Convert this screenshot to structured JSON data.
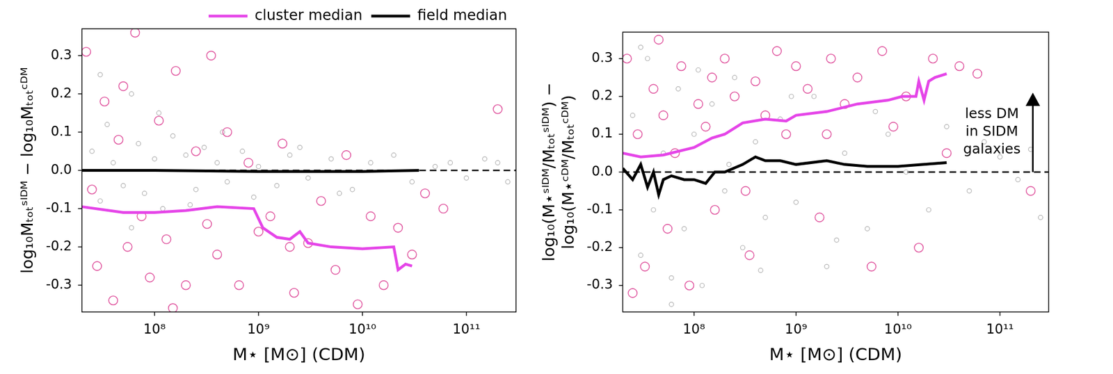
{
  "chart_data": [
    {
      "type": "scatter",
      "x_label": "M⋆ [M⊙] (CDM)",
      "y_label": "log₁₀Mₜₒₜˢᴵᴰᴹ − log₁₀Mₜₒₜᶜᴰᴹ",
      "log": "x",
      "grid": false,
      "legend": "top right",
      "xlim": [
        20000000.0,
        300000000000.0
      ],
      "xticks": [
        {
          "value": 100000000.0,
          "label": "10⁸"
        },
        {
          "value": 1000000000.0,
          "label": "10⁹"
        },
        {
          "value": 10000000000.0,
          "label": "10¹⁰"
        },
        {
          "value": 100000000000.0,
          "label": "10¹¹"
        }
      ],
      "ylim": [
        -0.37,
        0.37
      ],
      "yticks": [
        -0.3,
        -0.2,
        -0.1,
        {
          "value": 0,
          "label": "0.0"
        },
        0.1,
        0.2,
        0.3
      ],
      "reference_line": {
        "y": 0,
        "color": "#000000",
        "line_style": "dashed"
      },
      "series": [
        {
          "type": "scatter",
          "color": "#b0b0b0",
          "marker": "small_open_circle",
          "x": [
            25000000.0,
            30000000.0,
            35000000.0,
            40000000.0,
            50000000.0,
            60000000.0,
            70000000.0,
            80000000.0,
            100000000.0,
            120000000.0,
            150000000.0,
            200000000.0,
            250000000.0,
            300000000.0,
            400000000.0,
            500000000.0,
            700000000.0,
            1000000000.0,
            1500000000.0,
            2000000000.0,
            3000000000.0,
            5000000000.0,
            8000000000.0,
            12000000000.0,
            20000000000.0,
            30000000000.0,
            50000000000.0,
            70000000000.0,
            100000000000.0,
            150000000000.0,
            200000000000.0,
            250000000000.0,
            30000000.0,
            60000000.0,
            110000000.0,
            220000000.0,
            450000000.0,
            900000000.0,
            2500000000.0,
            6000000000.0
          ],
          "values": [
            0.05,
            -0.08,
            0.12,
            0.02,
            -0.04,
            0.2,
            0.07,
            -0.06,
            0.03,
            -0.1,
            0.09,
            0.04,
            -0.05,
            0.06,
            0.02,
            -0.03,
            0.05,
            0.01,
            -0.04,
            0.04,
            -0.02,
            0.03,
            -0.05,
            0.02,
            0.04,
            -0.03,
            0.01,
            0.02,
            -0.02,
            0.03,
            0.02,
            -0.03,
            0.25,
            -0.15,
            0.15,
            -0.09,
            0.1,
            -0.07,
            0.06,
            -0.06
          ]
        },
        {
          "type": "scatter",
          "color": "#e0569f",
          "marker": "open_circle",
          "x": [
            22000000.0,
            28000000.0,
            33000000.0,
            40000000.0,
            45000000.0,
            55000000.0,
            65000000.0,
            75000000.0,
            90000000.0,
            110000000.0,
            130000000.0,
            160000000.0,
            200000000.0,
            250000000.0,
            320000000.0,
            400000000.0,
            500000000.0,
            650000000.0,
            800000000.0,
            1000000000.0,
            1300000000.0,
            1700000000.0,
            2200000000.0,
            3000000000.0,
            4000000000.0,
            5500000000.0,
            7000000000.0,
            9000000000.0,
            12000000000.0,
            16000000000.0,
            22000000000.0,
            30000000000.0,
            40000000000.0,
            60000000000.0,
            25000000.0,
            50000000.0,
            150000000.0,
            350000000.0,
            2000000000.0,
            200000000000.0
          ],
          "values": [
            0.31,
            -0.25,
            0.18,
            -0.34,
            0.08,
            -0.2,
            0.36,
            -0.12,
            -0.28,
            0.13,
            -0.18,
            0.26,
            -0.3,
            0.05,
            -0.14,
            -0.22,
            0.1,
            -0.3,
            0.02,
            -0.16,
            -0.12,
            0.07,
            -0.32,
            -0.19,
            -0.08,
            -0.26,
            0.04,
            -0.35,
            -0.12,
            -0.3,
            -0.15,
            -0.22,
            -0.06,
            -0.1,
            -0.05,
            0.22,
            -0.36,
            0.3,
            -0.2,
            0.16
          ]
        },
        {
          "name": "cluster median",
          "type": "line",
          "color": "#e545e8",
          "x": [
            20000000.0,
            50000000.0,
            100000000.0,
            200000000.0,
            400000000.0,
            900000000.0,
            1100000000.0,
            1500000000.0,
            2000000000.0,
            2500000000.0,
            3000000000.0,
            5000000000.0,
            10000000000.0,
            20000000000.0,
            22000000000.0,
            26000000000.0,
            30000000000.0
          ],
          "values": [
            -0.095,
            -0.11,
            -0.11,
            -0.105,
            -0.095,
            -0.1,
            -0.15,
            -0.175,
            -0.18,
            -0.16,
            -0.19,
            -0.2,
            -0.205,
            -0.2,
            -0.26,
            -0.245,
            -0.25
          ]
        },
        {
          "name": "field median",
          "type": "line",
          "color": "#000000",
          "x": [
            20000000.0,
            100000000.0,
            1000000000.0,
            10000000000.0,
            35000000000.0
          ],
          "values": [
            0.0,
            0.0,
            -0.003,
            -0.003,
            0.0
          ]
        }
      ]
    },
    {
      "type": "scatter",
      "x_label": "M⋆ [M⊙] (CDM)",
      "y_label": [
        "log₁₀(M⋆ˢᴵᴰᴹ/Mₜₒₜˢᴵᴰᴹ) −",
        "log₁₀(M⋆ᶜᴰᴹ/Mₜₒₜᶜᴰᴹ)"
      ],
      "log": "x",
      "grid": false,
      "xlim": [
        20000000.0,
        300000000000.0
      ],
      "xticks": [
        {
          "value": 100000000.0,
          "label": "10⁸"
        },
        {
          "value": 1000000000.0,
          "label": "10⁹"
        },
        {
          "value": 10000000000.0,
          "label": "10¹⁰"
        },
        {
          "value": 100000000000.0,
          "label": "10¹¹"
        }
      ],
      "ylim": [
        -0.37,
        0.37
      ],
      "yticks": [
        -0.3,
        -0.2,
        -0.1,
        {
          "value": 0,
          "label": "0.0"
        },
        0.1,
        0.2,
        0.3
      ],
      "reference_line": {
        "y": 0,
        "color": "#000000",
        "line_style": "dashed"
      },
      "annotation": {
        "text": [
          "less DM",
          "in SIDM",
          "galaxies"
        ],
        "x": 210000000000.0,
        "y_from": 0,
        "y_to": 0.21
      },
      "series": [
        {
          "type": "scatter",
          "color": "#b0b0b0",
          "marker": "small_open_circle",
          "x": [
            25000000.0,
            30000000.0,
            35000000.0,
            40000000.0,
            50000000.0,
            60000000.0,
            70000000.0,
            80000000.0,
            100000000.0,
            120000000.0,
            150000000.0,
            200000000.0,
            250000000.0,
            300000000.0,
            400000000.0,
            500000000.0,
            700000000.0,
            1000000000.0,
            1500000000.0,
            2000000000.0,
            3000000000.0,
            5000000000.0,
            8000000000.0,
            12000000000.0,
            20000000000.0,
            30000000000.0,
            50000000000.0,
            70000000000.0,
            100000000000.0,
            150000000000.0,
            200000000000.0,
            250000000000.0,
            30000000.0,
            60000000.0,
            110000000.0,
            220000000.0,
            450000000.0,
            900000000.0,
            2500000000.0,
            6000000000.0
          ],
          "values": [
            0.15,
            -0.22,
            0.3,
            -0.1,
            0.05,
            -0.28,
            0.22,
            -0.15,
            0.1,
            -0.3,
            0.18,
            -0.05,
            0.25,
            -0.2,
            0.08,
            -0.12,
            0.14,
            -0.08,
            0.2,
            -0.25,
            0.05,
            -0.15,
            0.1,
            0.0,
            -0.1,
            0.12,
            -0.05,
            0.08,
            0.04,
            -0.02,
            0.06,
            -0.12,
            0.33,
            -0.35,
            0.27,
            0.02,
            -0.26,
            0.2,
            -0.18,
            0.16
          ]
        },
        {
          "type": "scatter",
          "color": "#e0569f",
          "marker": "open_circle",
          "x": [
            22000000.0,
            28000000.0,
            33000000.0,
            40000000.0,
            45000000.0,
            55000000.0,
            65000000.0,
            75000000.0,
            90000000.0,
            110000000.0,
            130000000.0,
            160000000.0,
            200000000.0,
            250000000.0,
            320000000.0,
            400000000.0,
            500000000.0,
            650000000.0,
            800000000.0,
            1000000000.0,
            1300000000.0,
            1700000000.0,
            2200000000.0,
            3000000000.0,
            4000000000.0,
            5500000000.0,
            7000000000.0,
            9000000000.0,
            12000000000.0,
            16000000000.0,
            22000000000.0,
            30000000000.0,
            40000000000.0,
            60000000000.0,
            25000000.0,
            50000000.0,
            150000000.0,
            350000000.0,
            2000000000.0,
            200000000000.0
          ],
          "values": [
            0.3,
            0.1,
            -0.25,
            0.22,
            0.35,
            -0.15,
            0.05,
            0.28,
            -0.3,
            0.18,
            0.12,
            -0.1,
            0.3,
            0.2,
            -0.05,
            0.24,
            0.15,
            0.32,
            0.1,
            0.28,
            0.22,
            -0.12,
            0.3,
            0.18,
            0.25,
            -0.25,
            0.32,
            0.12,
            0.2,
            -0.2,
            0.3,
            0.05,
            0.28,
            0.26,
            -0.32,
            0.15,
            0.25,
            -0.22,
            0.1,
            -0.05
          ]
        },
        {
          "type": "line",
          "color": "#e545e8",
          "x": [
            20000000.0,
            30000000.0,
            50000000.0,
            100000000.0,
            150000000.0,
            200000000.0,
            300000000.0,
            500000000.0,
            800000000.0,
            1000000000.0,
            2000000000.0,
            4000000000.0,
            8000000000.0,
            11000000000.0,
            15000000000.0,
            16000000000.0,
            18000000000.0,
            20000000000.0,
            23000000000.0,
            30000000000.0
          ],
          "values": [
            0.05,
            0.04,
            0.045,
            0.065,
            0.09,
            0.1,
            0.13,
            0.14,
            0.135,
            0.15,
            0.16,
            0.18,
            0.19,
            0.2,
            0.2,
            0.24,
            0.19,
            0.24,
            0.25,
            0.26
          ]
        },
        {
          "type": "line",
          "color": "#000000",
          "x": [
            20000000.0,
            25000000.0,
            30000000.0,
            35000000.0,
            40000000.0,
            45000000.0,
            50000000.0,
            60000000.0,
            80000000.0,
            100000000.0,
            130000000.0,
            160000000.0,
            200000000.0,
            300000000.0,
            400000000.0,
            500000000.0,
            700000000.0,
            1000000000.0,
            2000000000.0,
            3000000000.0,
            5000000000.0,
            10000000000.0,
            30000000000.0
          ],
          "values": [
            0.01,
            -0.02,
            0.02,
            -0.04,
            0.0,
            -0.06,
            -0.02,
            -0.01,
            -0.02,
            -0.02,
            -0.03,
            0.0,
            0.0,
            0.02,
            0.04,
            0.03,
            0.03,
            0.02,
            0.03,
            0.02,
            0.015,
            0.015,
            0.025
          ]
        }
      ]
    }
  ]
}
